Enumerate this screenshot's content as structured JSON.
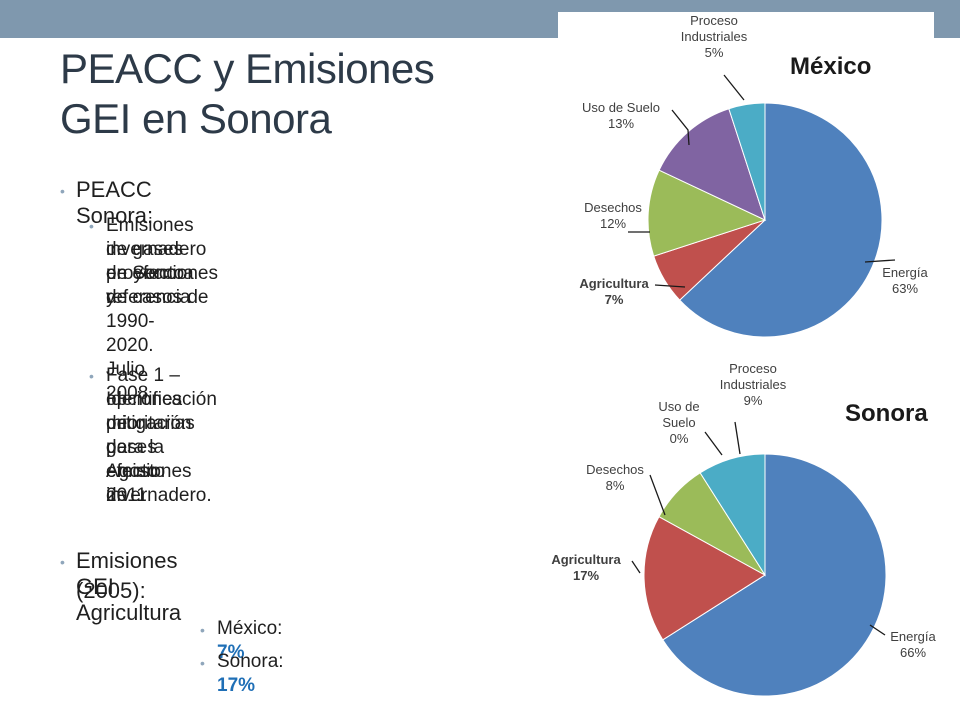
{
  "slide": {
    "title_line1": "PEACC y Emisiones",
    "title_line2": "GEI en Sonora",
    "bullet1": "PEACC Sonora:",
    "sub1_line1": "Emisiones de gases de efecto",
    "sub1_line2": "invernadero en Sonora y",
    "sub1_line3": "proyecciones de casos de",
    "sub1_line4": "referencia 1990-2020. Julio 2008",
    "sub2_line1": "Fase 1 – Identificación de",
    "sub2_line2": "opciones prioritarias para la",
    "sub2_line3": "mitigación de emisiones de",
    "sub2_line4": "gases efecto invernadero.",
    "sub2_line5": "Agosto 2011",
    "bullet2_line1": "Emisiones GEI Agricultura",
    "bullet2_line2": "(2005):",
    "mexico_label": "México:",
    "mexico_value": "7%",
    "sonora_label": "Sonora:",
    "sonora_value": "17%"
  },
  "chart_data": [
    {
      "type": "pie",
      "title": "México",
      "slices": [
        {
          "label_lines": [
            "Energía",
            "63%"
          ],
          "value": 63,
          "color": "#4f81bd",
          "bold": false
        },
        {
          "label_lines": [
            "Agricultura",
            "7%"
          ],
          "value": 7,
          "color": "#c0504d",
          "bold": true
        },
        {
          "label_lines": [
            "Desechos",
            "12%"
          ],
          "value": 12,
          "color": "#9bbb59",
          "bold": false
        },
        {
          "label_lines": [
            "Uso de Suelo",
            "13%"
          ],
          "value": 13,
          "color": "#8064a2",
          "bold": false
        },
        {
          "label_lines": [
            "Proceso",
            "Industriales",
            "5%"
          ],
          "value": 5,
          "color": "#4bacc6",
          "bold": false
        }
      ]
    },
    {
      "type": "pie",
      "title": "Sonora",
      "slices": [
        {
          "label_lines": [
            "Energía",
            "66%"
          ],
          "value": 66,
          "color": "#4f81bd",
          "bold": false
        },
        {
          "label_lines": [
            "Agricultura",
            "17%"
          ],
          "value": 17,
          "color": "#c0504d",
          "bold": true
        },
        {
          "label_lines": [
            "Desechos",
            "8%"
          ],
          "value": 8,
          "color": "#9bbb59",
          "bold": false
        },
        {
          "label_lines": [
            "Uso de",
            "Suelo",
            "0%"
          ],
          "value": 0,
          "color": "#8064a2",
          "bold": false
        },
        {
          "label_lines": [
            "Proceso",
            "Industriales",
            "9%"
          ],
          "value": 9,
          "color": "#4bacc6",
          "bold": false
        }
      ]
    }
  ]
}
